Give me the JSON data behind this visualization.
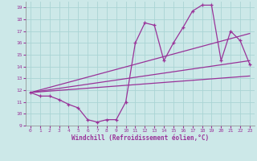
{
  "xlabel": "Windchill (Refroidissement éolien,°C)",
  "background_color": "#cce8e8",
  "grid_color": "#aad4d4",
  "line_color": "#993399",
  "xlim": [
    -0.5,
    23.5
  ],
  "ylim": [
    9,
    19.5
  ],
  "yticks": [
    9,
    10,
    11,
    12,
    13,
    14,
    15,
    16,
    17,
    18,
    19
  ],
  "xticks": [
    0,
    1,
    2,
    3,
    4,
    5,
    6,
    7,
    8,
    9,
    10,
    11,
    12,
    13,
    14,
    15,
    16,
    17,
    18,
    19,
    20,
    21,
    22,
    23
  ],
  "main_x": [
    0,
    1,
    2,
    3,
    4,
    5,
    6,
    7,
    8,
    9,
    10,
    11,
    12,
    13,
    14,
    15,
    16,
    17,
    18,
    19,
    20,
    21,
    22,
    23
  ],
  "main_y": [
    11.8,
    11.5,
    11.5,
    11.2,
    10.8,
    10.5,
    9.5,
    9.3,
    9.5,
    9.5,
    11.0,
    16.0,
    17.7,
    17.5,
    14.5,
    16.0,
    17.3,
    18.7,
    19.2,
    19.2,
    14.5,
    17.0,
    16.2,
    14.2
  ],
  "trend1_x": [
    0,
    23
  ],
  "trend1_y": [
    11.8,
    16.8
  ],
  "trend2_x": [
    0,
    23
  ],
  "trend2_y": [
    11.8,
    14.5
  ],
  "trend3_x": [
    0,
    23
  ],
  "trend3_y": [
    11.8,
    13.2
  ]
}
